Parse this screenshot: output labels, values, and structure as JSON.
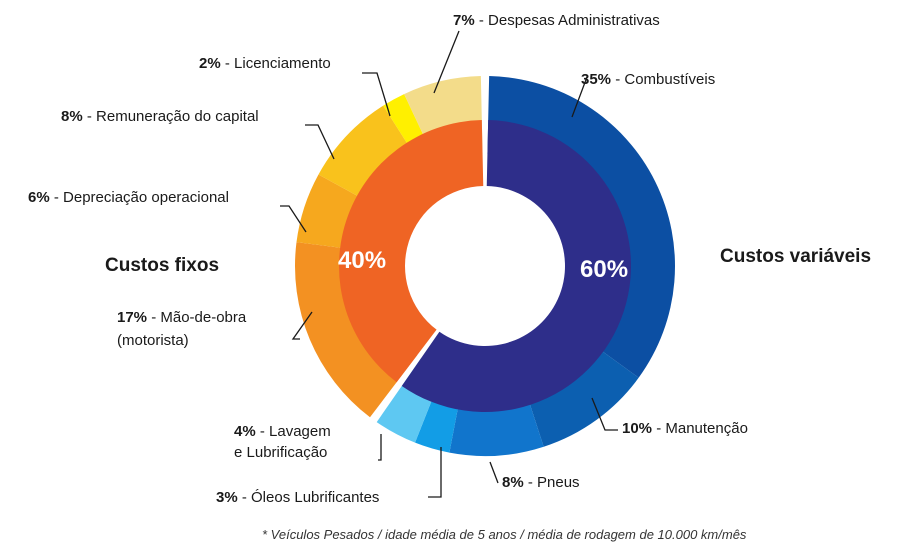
{
  "chart_data": {
    "type": "pie",
    "variant": "nested-donut",
    "inner_ring": [
      {
        "label": "Custos variáveis",
        "percent": "60%",
        "value": 60,
        "color": "#2e2e8a"
      },
      {
        "label": "Custos fixos",
        "percent": "40%",
        "value": 40,
        "color": "#ef6424"
      }
    ],
    "outer_ring": [
      {
        "percent": "35%",
        "name": "- Combustíveis",
        "value": 35,
        "color": "#0c4fa3",
        "group": "variaveis"
      },
      {
        "percent": "10%",
        "name": "- Manutenção",
        "value": 10,
        "color": "#0c5fb0",
        "group": "variaveis"
      },
      {
        "percent": "8%",
        "name": "- Pneus",
        "value": 8,
        "color": "#1175cc",
        "group": "variaveis"
      },
      {
        "percent": "3%",
        "name": "- Óleos Lubrificantes",
        "value": 3,
        "color": "#129de6",
        "group": "variaveis"
      },
      {
        "percent": "4%",
        "name": "- Lavagem",
        "name_line2": "e Lubrificação",
        "value": 4,
        "color": "#5ec8f2",
        "group": "variaveis"
      },
      {
        "percent": "17%",
        "name": "- Mão-de-obra",
        "name_line2": "(motorista)",
        "value": 17,
        "color": "#f39122",
        "group": "fixos"
      },
      {
        "percent": "6%",
        "name": "- Depreciação operacional",
        "value": 6,
        "color": "#f6a81e",
        "group": "fixos"
      },
      {
        "percent": "8%",
        "name": "- Remuneração do capital",
        "value": 8,
        "color": "#f9c21c",
        "group": "fixos"
      },
      {
        "percent": "2%",
        "name": "- Licenciamento",
        "value": 2,
        "color": "#fff000",
        "group": "fixos"
      },
      {
        "percent": "7%",
        "name": "- Despesas Administrativas",
        "value": 7,
        "color": "#f3dc8a",
        "group": "fixos"
      }
    ],
    "footnote": "* Veículos Pesados / idade média de 5 anos / média de rodagem de 10.000 km/mês"
  }
}
